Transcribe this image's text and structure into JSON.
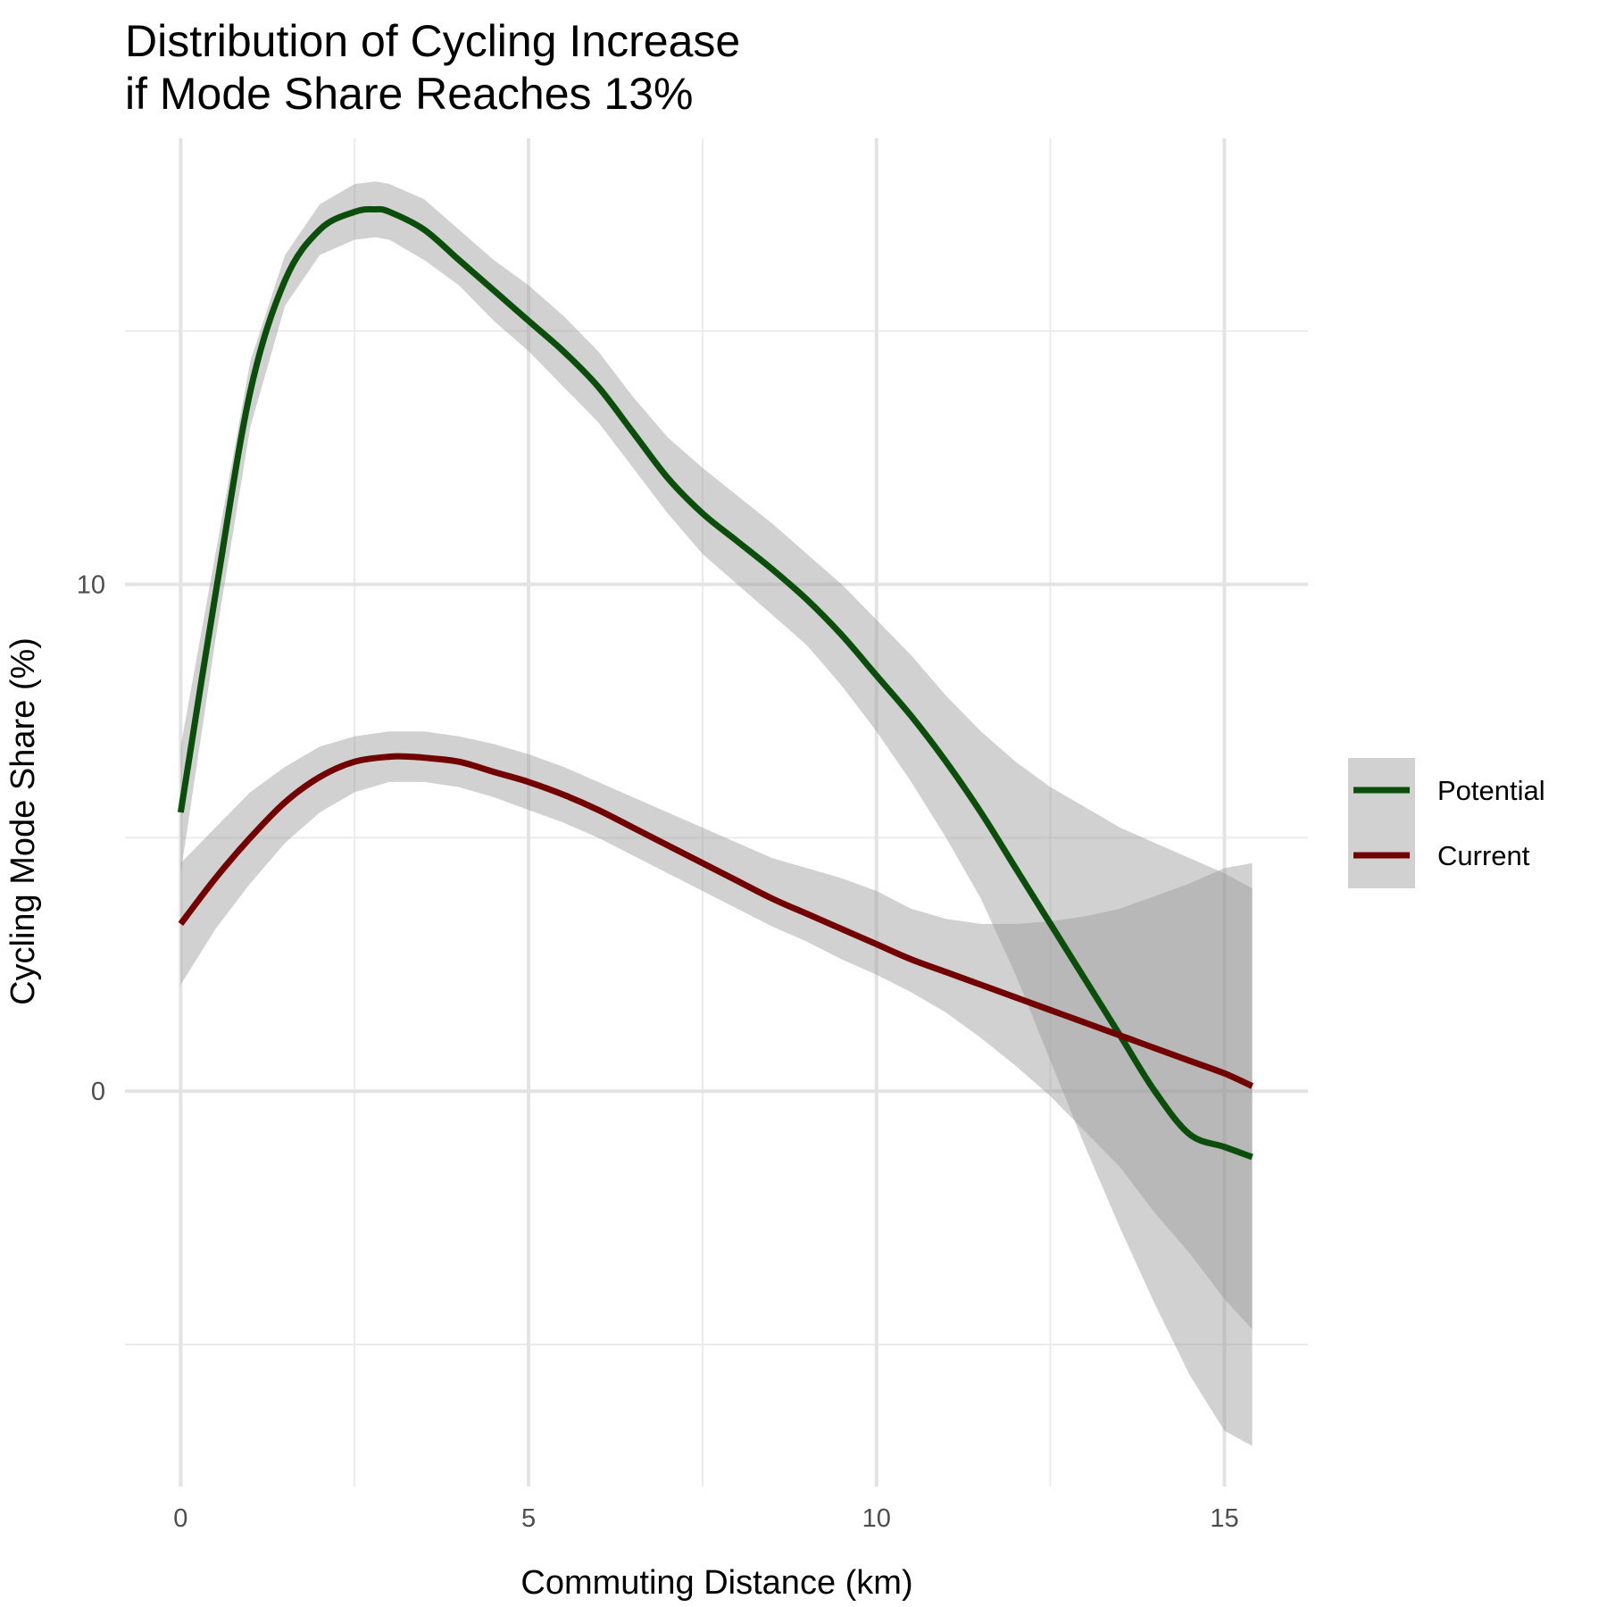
{
  "chart_data": {
    "type": "line",
    "title_lines": [
      "Distribution of Cycling Increase",
      "if Mode Share Reaches 13%"
    ],
    "xlabel": "Commuting Distance (km)",
    "ylabel": "Cycling Mode Share (%)",
    "xlim": [
      -0.8,
      16.2
    ],
    "ylim": [
      -7.8,
      18.8
    ],
    "x_ticks": [
      0,
      5,
      10,
      15
    ],
    "x_tick_labels": [
      "0",
      "5",
      "10",
      "15"
    ],
    "y_ticks": [
      0,
      10
    ],
    "y_tick_labels": [
      "0",
      "10"
    ],
    "x_minor_ticks": [
      2.5,
      7.5,
      12.5
    ],
    "y_minor_ticks": [
      -5,
      5,
      15
    ],
    "grid": true,
    "legend_position": "right",
    "series": [
      {
        "name": "Potential",
        "color": "#0b4d0b",
        "x": [
          0,
          0.5,
          1,
          1.5,
          2,
          2.5,
          2.8,
          3,
          3.5,
          4,
          4.5,
          5,
          5.5,
          6,
          6.5,
          7,
          7.5,
          8,
          8.5,
          9,
          9.5,
          10,
          10.5,
          11,
          11.5,
          12,
          12.5,
          13,
          13.5,
          14,
          14.5,
          15,
          15.4
        ],
        "y": [
          5.5,
          9.8,
          13.8,
          16.0,
          17.0,
          17.35,
          17.4,
          17.35,
          17.0,
          16.4,
          15.8,
          15.2,
          14.6,
          13.9,
          13.0,
          12.1,
          11.4,
          10.85,
          10.3,
          9.7,
          9.0,
          8.2,
          7.4,
          6.5,
          5.5,
          4.4,
          3.3,
          2.2,
          1.1,
          0.0,
          -0.85,
          -1.1,
          -1.3
        ],
        "upper": [
          6.8,
          10.6,
          14.4,
          16.5,
          17.5,
          17.9,
          17.95,
          17.9,
          17.6,
          17.0,
          16.4,
          15.9,
          15.3,
          14.6,
          13.7,
          12.9,
          12.3,
          11.75,
          11.2,
          10.6,
          10.0,
          9.3,
          8.6,
          7.8,
          7.1,
          6.5,
          6.0,
          5.6,
          5.2,
          4.9,
          4.6,
          4.3,
          4.0
        ],
        "lower": [
          4.3,
          8.9,
          13.1,
          15.5,
          16.5,
          16.8,
          16.85,
          16.8,
          16.4,
          15.9,
          15.2,
          14.6,
          13.9,
          13.2,
          12.3,
          11.4,
          10.6,
          10.0,
          9.4,
          8.8,
          8.0,
          7.1,
          6.1,
          5.0,
          3.8,
          2.3,
          0.6,
          -1.1,
          -2.7,
          -4.2,
          -5.6,
          -6.7,
          -7.0
        ]
      },
      {
        "name": "Current",
        "color": "#720000",
        "x": [
          0,
          0.5,
          1,
          1.5,
          2,
          2.5,
          3,
          3.3,
          3.5,
          4,
          4.5,
          5,
          5.5,
          6,
          6.5,
          7,
          7.5,
          8,
          8.5,
          9,
          9.5,
          10,
          10.5,
          11,
          11.5,
          12,
          12.5,
          13,
          13.5,
          14,
          14.5,
          15,
          15.4
        ],
        "y": [
          3.3,
          4.2,
          5.0,
          5.7,
          6.2,
          6.5,
          6.6,
          6.6,
          6.58,
          6.5,
          6.3,
          6.1,
          5.85,
          5.55,
          5.2,
          4.85,
          4.5,
          4.15,
          3.8,
          3.5,
          3.2,
          2.9,
          2.6,
          2.35,
          2.1,
          1.85,
          1.6,
          1.35,
          1.1,
          0.85,
          0.6,
          0.35,
          0.1
        ],
        "upper": [
          4.5,
          5.2,
          5.9,
          6.4,
          6.8,
          7.0,
          7.1,
          7.1,
          7.1,
          7.0,
          6.85,
          6.65,
          6.4,
          6.1,
          5.8,
          5.5,
          5.2,
          4.9,
          4.6,
          4.4,
          4.2,
          3.95,
          3.6,
          3.4,
          3.3,
          3.3,
          3.35,
          3.45,
          3.6,
          3.85,
          4.1,
          4.4,
          4.5
        ],
        "lower": [
          2.1,
          3.2,
          4.1,
          4.9,
          5.5,
          5.9,
          6.1,
          6.1,
          6.1,
          6.0,
          5.8,
          5.55,
          5.3,
          5.0,
          4.65,
          4.3,
          3.95,
          3.6,
          3.25,
          2.95,
          2.6,
          2.3,
          1.95,
          1.55,
          1.05,
          0.5,
          -0.1,
          -0.8,
          -1.5,
          -2.4,
          -3.2,
          -4.1,
          -4.7
        ]
      }
    ],
    "ribbon_color": "#999999"
  }
}
